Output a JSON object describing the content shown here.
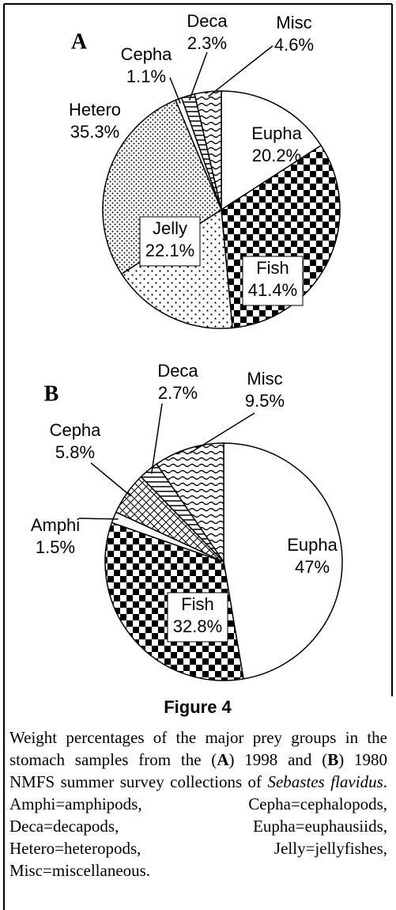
{
  "chart_data": [
    {
      "type": "pie",
      "label": "A",
      "categories": [
        "Eupha",
        "Fish",
        "Jelly",
        "Hetero",
        "Cepha",
        "Deca",
        "Misc"
      ],
      "values": [
        20.2,
        41.4,
        22.1,
        35.3,
        1.1,
        2.3,
        4.6
      ],
      "value_labels": [
        "20.2%",
        "41.4%",
        "22.1%",
        "35.3%",
        "1.1%",
        "2.3%",
        "4.6%"
      ],
      "patterns": [
        "white",
        "checker",
        "dots",
        "dense",
        "white",
        "hlines",
        "wave"
      ]
    },
    {
      "type": "pie",
      "label": "B",
      "categories": [
        "Eupha",
        "Fish",
        "Amphi",
        "Cepha",
        "Deca",
        "Misc"
      ],
      "values": [
        47,
        32.8,
        1.5,
        5.8,
        2.7,
        9.5
      ],
      "value_labels": [
        "47%",
        "32.8%",
        "1.5%",
        "5.8%",
        "2.7%",
        "9.5%"
      ],
      "patterns": [
        "white",
        "checker",
        "white",
        "cross",
        "hlines",
        "wave"
      ]
    }
  ],
  "figure_title": "Figure 4",
  "caption": [
    "Weight percentages of the major prey groups in the stomach samples from the (",
    "A",
    ") 1998 and (",
    "B",
    ") 1980 NMFS summer survey collections of ",
    "Sebastes flavidus",
    ". Amphi=amphipods, Cepha=cephalopods, Deca=decapods, Eupha=euphausiids, Hetero=heteropods, Jelly=jellyfishes, Misc=miscellaneous."
  ]
}
